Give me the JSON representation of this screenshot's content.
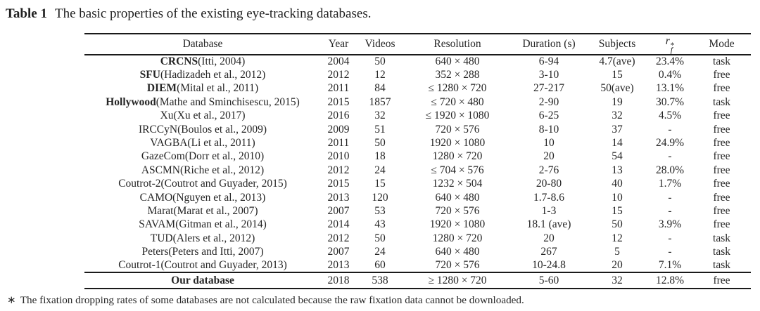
{
  "caption": {
    "label": "Table 1",
    "text": "The basic properties of the existing eye-tracking databases."
  },
  "colors": {
    "background": "#ffffff",
    "text": "#262626",
    "rule": "#1a1a1a"
  },
  "table": {
    "columns": {
      "database": "Database",
      "year": "Year",
      "videos": "Videos",
      "resolution": "Resolution",
      "duration": "Duration (s)",
      "subjects": "Subjects",
      "mode": "Mode"
    },
    "rf_header": {
      "base": "r",
      "sup": "*",
      "sub": "f"
    },
    "rows": [
      {
        "name": "CRCNS",
        "citation": "(Itti, 2004)",
        "bold_name": true,
        "year": "2004",
        "videos": "50",
        "resolution": "640 × 480",
        "duration": "6-94",
        "subjects": "4.7(ave)",
        "rf": "23.4%",
        "mode": "task"
      },
      {
        "name": "SFU",
        "citation": "(Hadizadeh et al., 2012)",
        "bold_name": true,
        "year": "2012",
        "videos": "12",
        "resolution": "352 × 288",
        "duration": "3-10",
        "subjects": "15",
        "rf": "0.4%",
        "mode": "free"
      },
      {
        "name": "DIEM",
        "citation": "(Mital et al., 2011)",
        "bold_name": true,
        "year": "2011",
        "videos": "84",
        "resolution": "≤ 1280 × 720",
        "duration": "27-217",
        "subjects": "50(ave)",
        "rf": "13.1%",
        "mode": "free"
      },
      {
        "name": "Hollywood",
        "citation": "(Mathe and Sminchisescu, 2015)",
        "bold_name": true,
        "year": "2015",
        "videos": "1857",
        "resolution": "≤ 720 × 480",
        "duration": "2-90",
        "subjects": "19",
        "rf": "30.7%",
        "mode": "task"
      },
      {
        "name": "Xu",
        "citation": "(Xu et al., 2017)",
        "bold_name": false,
        "year": "2016",
        "videos": "32",
        "resolution": "≤ 1920 × 1080",
        "duration": "6-25",
        "subjects": "32",
        "rf": "4.5%",
        "mode": "free"
      },
      {
        "name": "IRCCyN",
        "citation": "(Boulos et al., 2009)",
        "bold_name": false,
        "year": "2009",
        "videos": "51",
        "resolution": "720 × 576",
        "duration": "8-10",
        "subjects": "37",
        "rf": "-",
        "mode": "free"
      },
      {
        "name": "VAGBA",
        "citation": "(Li et al., 2011)",
        "bold_name": false,
        "year": "2011",
        "videos": "50",
        "resolution": "1920 × 1080",
        "duration": "10",
        "subjects": "14",
        "rf": "24.9%",
        "mode": "free"
      },
      {
        "name": "GazeCom",
        "citation": "(Dorr et al., 2010)",
        "bold_name": false,
        "year": "2010",
        "videos": "18",
        "resolution": "1280 × 720",
        "duration": "20",
        "subjects": "54",
        "rf": "-",
        "mode": "free"
      },
      {
        "name": "ASCMN",
        "citation": "(Riche et al., 2012)",
        "bold_name": false,
        "year": "2012",
        "videos": "24",
        "resolution": "≤ 704 × 576",
        "duration": "2-76",
        "subjects": "13",
        "rf": "28.0%",
        "mode": "free"
      },
      {
        "name": "Coutrot-2",
        "citation": "(Coutrot and Guyader, 2015)",
        "bold_name": false,
        "year": "2015",
        "videos": "15",
        "resolution": "1232 × 504",
        "duration": "20-80",
        "subjects": "40",
        "rf": "1.7%",
        "mode": "free"
      },
      {
        "name": "CAMO",
        "citation": "(Nguyen et al., 2013)",
        "bold_name": false,
        "year": "2013",
        "videos": "120",
        "resolution": "640 × 480",
        "duration": "1.7-8.6",
        "subjects": "10",
        "rf": "-",
        "mode": "free"
      },
      {
        "name": "Marat",
        "citation": "(Marat et al., 2007)",
        "bold_name": false,
        "year": "2007",
        "videos": "53",
        "resolution": "720 × 576",
        "duration": "1-3",
        "subjects": "15",
        "rf": "-",
        "mode": "free"
      },
      {
        "name": "SAVAM",
        "citation": "(Gitman et al., 2014)",
        "bold_name": false,
        "year": "2014",
        "videos": "43",
        "resolution": "1920 × 1080",
        "duration": "18.1 (ave)",
        "subjects": "50",
        "rf": "3.9%",
        "mode": "free"
      },
      {
        "name": "TUD",
        "citation": "(Alers et al., 2012)",
        "bold_name": false,
        "year": "2012",
        "videos": "50",
        "resolution": "1280 × 720",
        "duration": "20",
        "subjects": "12",
        "rf": "-",
        "mode": "task"
      },
      {
        "name": "Peters",
        "citation": "(Peters and Itti, 2007)",
        "bold_name": false,
        "year": "2007",
        "videos": "24",
        "resolution": "640 × 480",
        "duration": "267",
        "subjects": "5",
        "rf": "-",
        "mode": "task"
      },
      {
        "name": "Coutrot-1",
        "citation": "(Coutrot and Guyader, 2013)",
        "bold_name": false,
        "year": "2013",
        "videos": "60",
        "resolution": "720 × 576",
        "duration": "10-24.8",
        "subjects": "20",
        "rf": "7.1%",
        "mode": "task"
      }
    ],
    "summary_row": {
      "name": "Our database",
      "citation": "",
      "bold_name": true,
      "year": "2018",
      "videos": "538",
      "resolution": "≥ 1280 × 720",
      "duration": "5-60",
      "subjects": "32",
      "rf": "12.8%",
      "mode": "free"
    }
  },
  "footnote": {
    "marker": "∗",
    "text": "The fixation dropping rates of some databases are not calculated because the raw fixation data cannot be downloaded."
  }
}
